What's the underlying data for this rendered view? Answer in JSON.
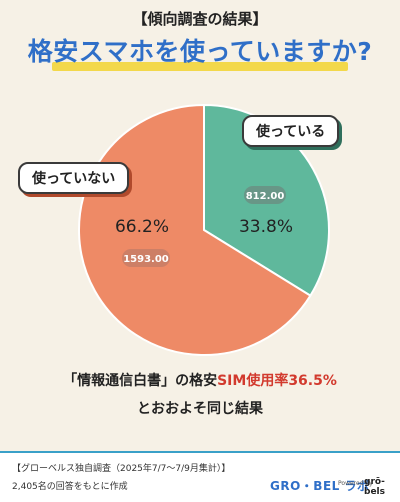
{
  "header": {
    "subtitle": "【傾向調査の結果】",
    "title": "格安スマホを使っていますか?"
  },
  "colors": {
    "using": "#5fb89c",
    "not_using": "#ee8a66",
    "highlight": "#f3d84b",
    "title": "#2f6fc8"
  },
  "chart_data": {
    "type": "pie",
    "slices": [
      {
        "label": "使っている",
        "count": "812.00",
        "percent": "33.8%",
        "value": 33.8
      },
      {
        "label": "使っていない",
        "count": "1593.00",
        "percent": "66.2%",
        "value": 66.2
      }
    ]
  },
  "note": {
    "line1_pre": "「情報通信白書」の格安",
    "line1_red": "SIM使用率36.5%",
    "line2": "とおおよそ同じ結果"
  },
  "footer": {
    "source": "【グローベルス独自調査（2025年7/7〜7/9月集計）】",
    "respondents": "2,405名の回答をもとに作成",
    "brand": "GRO・BEL ラボ",
    "powered": "Powered by",
    "logo": "grō-bels"
  }
}
